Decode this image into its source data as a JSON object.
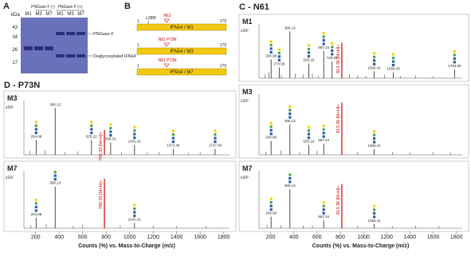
{
  "panel_a": {
    "label": "A",
    "unit": "kDa",
    "groups": [
      "PNGase F (-)",
      "PNGase F (+)"
    ],
    "lanes": [
      "M1",
      "M3",
      "M7",
      "M1",
      "M3",
      "M7"
    ],
    "ladder": [
      "43",
      "34",
      "26",
      "17"
    ],
    "bands": [
      "PNGase F",
      "Deglycosylated IFNλ4"
    ]
  },
  "panel_b": {
    "label": "B",
    "start": "1",
    "end": "179",
    "mutation": "L28M",
    "constructs": [
      {
        "name": "IFNλ4 / M1",
        "site": "N61"
      },
      {
        "name": "IFNλ4 / M3",
        "site": "N61 P73N"
      },
      {
        "name": "IFNλ4 / M7",
        "site": "N61 P73N"
      }
    ]
  },
  "spectra_axis": {
    "title": "Counts (%) vs. Mass-to-Charge (m/z)",
    "unit": "x10²",
    "xlim": [
      100,
      1850
    ],
    "xticks": [
      200,
      400,
      600,
      800,
      1000,
      1200,
      1400,
      1600,
      1800
    ],
    "ylim": [
      0,
      1.1
    ]
  },
  "panel_c": {
    "label": "C - N61",
    "spectra": [
      {
        "name": "M1",
        "precursor": {
          "label": "813.36 [M+H]+",
          "mz": 813.36,
          "height": 0.72
        },
        "peaks": {
          "mz": [
            204.08,
            274.09,
            366.13,
            528.19,
            657.24,
            729.25,
            1092.41,
            1256.43,
            1783.69
          ],
          "height": [
            0.38,
            0.22,
            0.95,
            0.3,
            0.55,
            0.34,
            0.14,
            0.12,
            0.18
          ]
        },
        "minor": {
          "mz": [
            150,
            186,
            292,
            412,
            480,
            560,
            610,
            880,
            950,
            1020,
            1180,
            1320,
            1450,
            1600
          ],
          "height": [
            0.08,
            0.12,
            0.06,
            0.1,
            0.07,
            0.09,
            0.05,
            0.08,
            0.06,
            0.05,
            0.07,
            0.05,
            0.06,
            0.04
          ]
        }
      },
      {
        "name": "M3",
        "precursor": {
          "label": "813.36 [M+H]+",
          "mz": 813.36,
          "height": 0.95
        },
        "peaks": {
          "mz": [
            204.08,
            366.13,
            528.19,
            657.24,
            1092.41
          ],
          "height": [
            0.25,
            0.55,
            0.18,
            0.2,
            0.1
          ]
        },
        "minor": {
          "mz": [
            160,
            290,
            450,
            600,
            950,
            1250,
            1400,
            1600,
            1750
          ],
          "height": [
            0.06,
            0.08,
            0.05,
            0.07,
            0.06,
            0.05,
            0.04,
            0.05,
            0.04
          ]
        }
      },
      {
        "name": "M7",
        "precursor": {
          "label": "813.36 [M+H]+",
          "mz": 813.36,
          "height": 0.85
        },
        "peaks": {
          "mz": [
            204.08,
            366.13,
            657.24,
            1092.41
          ],
          "height": [
            0.22,
            0.75,
            0.15,
            0.08
          ]
        },
        "minor": {
          "mz": [
            170,
            290,
            480,
            560,
            950,
            1250,
            1450,
            1650
          ],
          "height": [
            0.07,
            0.06,
            0.05,
            0.06,
            0.05,
            0.04,
            0.05,
            0.04
          ]
        }
      }
    ]
  },
  "panel_d": {
    "label": "D - P73N",
    "spectra": [
      {
        "name": "M3",
        "precursor": {
          "label": "785.33 [M+H]+",
          "mz": 785.33,
          "height": 0.5
        },
        "peaks": {
          "mz": [
            204.08,
            366.13,
            675.22,
            838.31,
            1041.41,
            1371.46,
            1727.66
          ],
          "height": [
            0.3,
            0.95,
            0.3,
            0.25,
            0.2,
            0.12,
            0.12
          ]
        },
        "minor": {
          "mz": [
            150,
            280,
            450,
            560,
            930,
            1150,
            1250,
            1500,
            1600
          ],
          "height": [
            0.08,
            0.1,
            0.06,
            0.07,
            0.06,
            0.05,
            0.06,
            0.04,
            0.05
          ]
        }
      },
      {
        "name": "M7",
        "precursor": {
          "label": "785.33 [M+H]+",
          "mz": 785.33,
          "height": 0.95
        },
        "peaks": {
          "mz": [
            204.08,
            366.13,
            1041.41
          ],
          "height": [
            0.2,
            0.8,
            0.1
          ]
        },
        "minor": {
          "mz": [
            160,
            290,
            520,
            600,
            920,
            1200,
            1400,
            1650
          ],
          "height": [
            0.06,
            0.08,
            0.05,
            0.07,
            0.06,
            0.05,
            0.04,
            0.04
          ]
        }
      }
    ]
  }
}
